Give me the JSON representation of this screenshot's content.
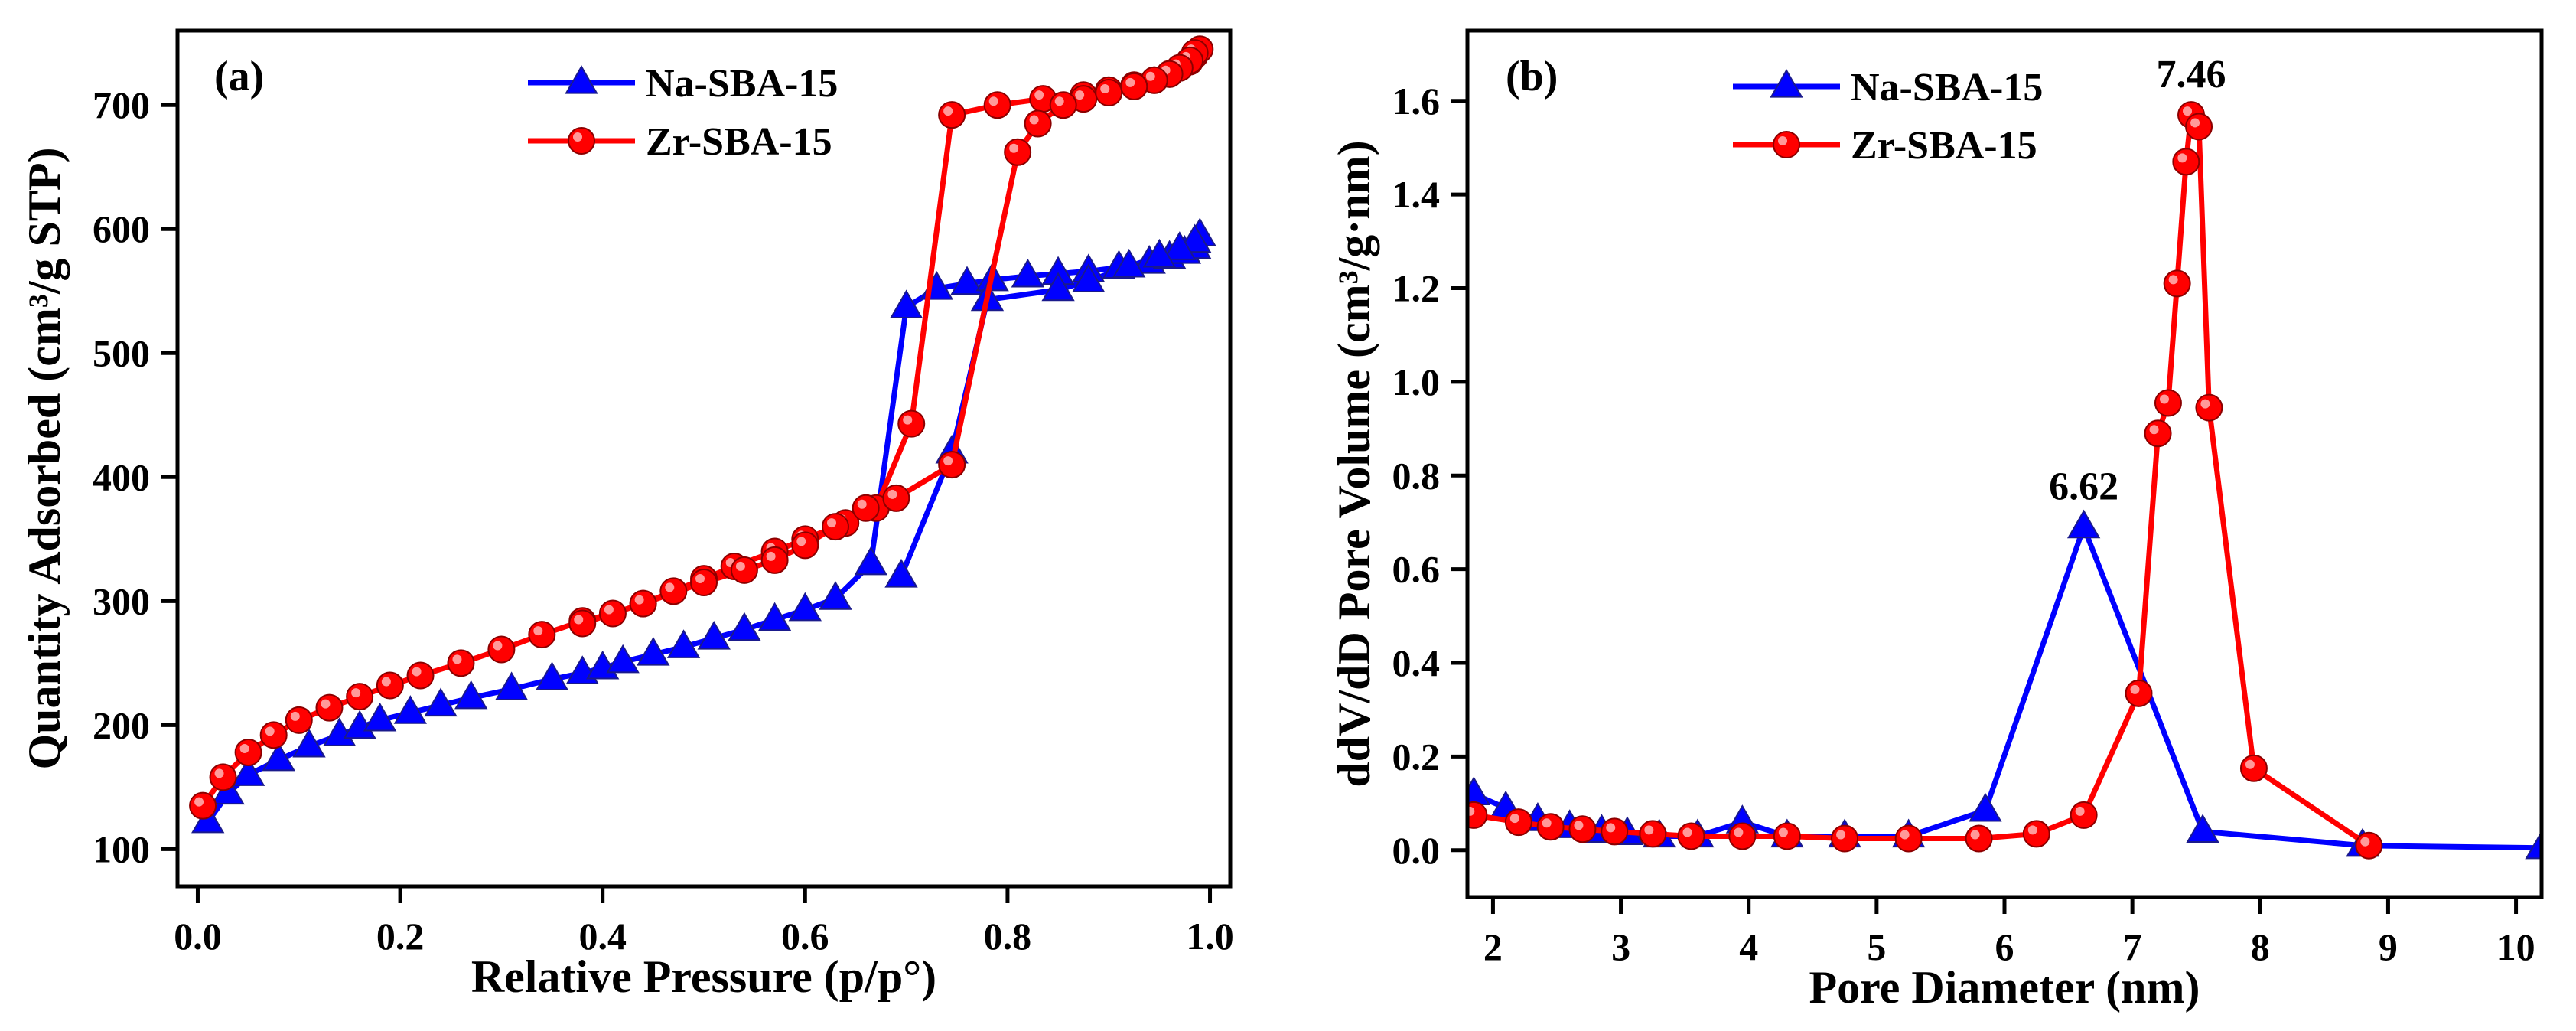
{
  "chart_data": [
    {
      "id": "a",
      "type": "line",
      "panel_label": "(a)",
      "xlabel": "Relative Pressure (p/p°)",
      "ylabel": "Quantity Adsorbed (cm³/g STP)",
      "xlim": [
        -0.02,
        1.02
      ],
      "ylim": [
        70,
        760
      ],
      "xticks": [
        0.0,
        0.2,
        0.4,
        0.6,
        0.8,
        1.0
      ],
      "xtick_labels": [
        "0.0",
        "0.2",
        "0.4",
        "0.6",
        "0.8",
        "1.0"
      ],
      "yticks": [
        100,
        200,
        300,
        400,
        500,
        600,
        700
      ],
      "ytick_labels": [
        "100",
        "200",
        "300",
        "400",
        "500",
        "600",
        "700"
      ],
      "legend_position": "top-center",
      "series": [
        {
          "name": "Na-SBA-15",
          "color": "#0000ff",
          "marker": "triangle",
          "x": [
            0.01,
            0.03,
            0.05,
            0.08,
            0.11,
            0.14,
            0.16,
            0.18,
            0.21,
            0.24,
            0.27,
            0.31,
            0.35,
            0.38,
            0.4,
            0.42,
            0.45,
            0.48,
            0.51,
            0.54,
            0.57,
            0.6,
            0.63,
            0.665,
            0.7,
            0.73,
            0.76,
            0.785,
            0.82,
            0.85,
            0.88,
            0.91,
            0.94,
            0.96,
            0.975,
            0.985,
            0.99,
            0.985,
            0.97,
            0.95,
            0.92,
            0.88,
            0.85,
            0.78,
            0.745,
            0.695
          ],
          "y": [
            122,
            145,
            160,
            172,
            183,
            192,
            198,
            204,
            210,
            216,
            222,
            229,
            237,
            242,
            246,
            251,
            257,
            263,
            270,
            277,
            285,
            293,
            302,
            330,
            537,
            552,
            556,
            559,
            562,
            564,
            566,
            569,
            573,
            577,
            581,
            585,
            595,
            590,
            584,
            578,
            570,
            558,
            551,
            543,
            420,
            320
          ]
        },
        {
          "name": "Zr-SBA-15",
          "color": "#ff0000",
          "marker": "circle",
          "x": [
            0.005,
            0.025,
            0.05,
            0.075,
            0.1,
            0.13,
            0.16,
            0.19,
            0.22,
            0.26,
            0.3,
            0.34,
            0.38,
            0.41,
            0.44,
            0.47,
            0.5,
            0.53,
            0.57,
            0.6,
            0.64,
            0.67,
            0.705,
            0.745,
            0.79,
            0.835,
            0.875,
            0.9,
            0.925,
            0.945,
            0.96,
            0.97,
            0.98,
            0.985,
            0.99,
            0.985,
            0.98,
            0.97,
            0.96,
            0.945,
            0.925,
            0.9,
            0.875,
            0.855,
            0.83,
            0.81,
            0.745,
            0.69,
            0.66,
            0.63,
            0.6,
            0.57,
            0.54,
            0.5,
            0.44,
            0.38
          ],
          "y": [
            135,
            158,
            178,
            192,
            204,
            214,
            223,
            232,
            240,
            250,
            261,
            273,
            284,
            290,
            298,
            308,
            318,
            328,
            340,
            350,
            363,
            375,
            443,
            692,
            700,
            705,
            708,
            712,
            716,
            720,
            725,
            730,
            735,
            740,
            745,
            742,
            736,
            730,
            725,
            720,
            715,
            710,
            705,
            700,
            685,
            662,
            410,
            383,
            375,
            360,
            345,
            333,
            325,
            315,
            298,
            282
          ]
        }
      ]
    },
    {
      "id": "b",
      "type": "line",
      "panel_label": "(b)",
      "xlabel": "Pore Diameter (nm)",
      "ylabel": "ddV/dD Pore Volume (cm³/g·nm)",
      "xlim": [
        1.8,
        10.2
      ],
      "ylim": [
        -0.1,
        1.75
      ],
      "xticks": [
        2,
        3,
        4,
        5,
        6,
        7,
        8,
        9,
        10
      ],
      "xtick_labels": [
        "2",
        "3",
        "4",
        "5",
        "6",
        "7",
        "8",
        "9",
        "10"
      ],
      "yticks": [
        0.0,
        0.2,
        0.4,
        0.6,
        0.8,
        1.0,
        1.2,
        1.4,
        1.6
      ],
      "ytick_labels": [
        "0.0",
        "0.2",
        "0.4",
        "0.6",
        "0.8",
        "1.0",
        "1.2",
        "1.4",
        "1.6"
      ],
      "legend_position": "top-center",
      "annotations": [
        {
          "text": "6.62",
          "x": 6.62,
          "y": 0.69
        },
        {
          "text": "7.46",
          "x": 7.46,
          "y": 1.57
        }
      ],
      "series": [
        {
          "name": "Na-SBA-15",
          "color": "#0000ff",
          "marker": "triangle",
          "x": [
            1.85,
            2.1,
            2.35,
            2.6,
            2.85,
            3.05,
            3.3,
            3.6,
            3.95,
            4.3,
            4.75,
            5.25,
            5.85,
            6.62,
            7.55,
            8.8,
            10.2
          ],
          "y": [
            0.12,
            0.09,
            0.065,
            0.05,
            0.04,
            0.035,
            0.03,
            0.03,
            0.06,
            0.03,
            0.03,
            0.03,
            0.085,
            0.69,
            0.04,
            0.01,
            0.005
          ]
        },
        {
          "name": "Zr-SBA-15",
          "color": "#ff0000",
          "marker": "circle",
          "x": [
            1.85,
            2.2,
            2.45,
            2.7,
            2.95,
            3.25,
            3.55,
            3.95,
            4.3,
            4.75,
            5.25,
            5.8,
            6.25,
            6.62,
            7.05,
            7.2,
            7.28,
            7.35,
            7.42,
            7.46,
            7.52,
            7.6,
            7.95,
            8.85
          ],
          "y": [
            0.075,
            0.06,
            0.05,
            0.045,
            0.04,
            0.035,
            0.03,
            0.03,
            0.03,
            0.025,
            0.025,
            0.025,
            0.035,
            0.075,
            0.335,
            0.89,
            0.955,
            1.21,
            1.47,
            1.57,
            1.545,
            0.945,
            0.175,
            0.01
          ]
        }
      ]
    }
  ]
}
